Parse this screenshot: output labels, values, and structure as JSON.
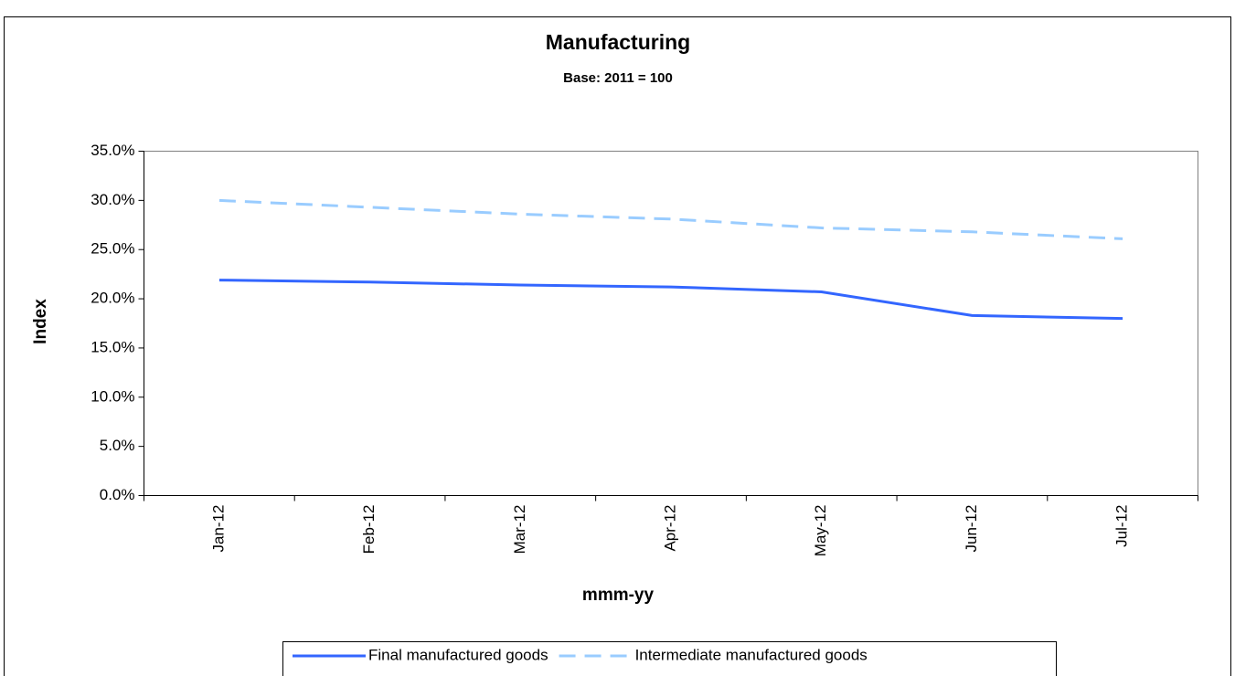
{
  "chart_data": {
    "type": "line",
    "title": "Manufacturing",
    "subtitle": "Base: 2011 = 100",
    "x_label": "mmm-yy",
    "y_label": "Index",
    "categories": [
      "Jan-12",
      "Feb-12",
      "Mar-12",
      "Apr-12",
      "May-12",
      "Jun-12",
      "Jul-12"
    ],
    "series": [
      {
        "name": "Final manufactured goods",
        "color": "#3366ff",
        "dashed": false,
        "values": [
          21.9,
          21.7,
          21.4,
          21.2,
          20.7,
          18.3,
          18.0
        ]
      },
      {
        "name": "Intermediate manufactured goods",
        "color": "#99ccff",
        "dashed": true,
        "values": [
          30.0,
          29.3,
          28.6,
          28.1,
          27.2,
          26.8,
          26.1
        ]
      }
    ],
    "ylim": [
      0,
      35
    ],
    "yticks": [
      {
        "value": 0,
        "label": "0.0%"
      },
      {
        "value": 5,
        "label": "5.0%"
      },
      {
        "value": 10,
        "label": "10.0%"
      },
      {
        "value": 15,
        "label": "15.0%"
      },
      {
        "value": 20,
        "label": "20.0%"
      },
      {
        "value": 25,
        "label": "25.0%"
      },
      {
        "value": 30,
        "label": "30.0%"
      },
      {
        "value": 35,
        "label": "35.0%"
      }
    ],
    "grid": false,
    "legend": "bottom"
  }
}
